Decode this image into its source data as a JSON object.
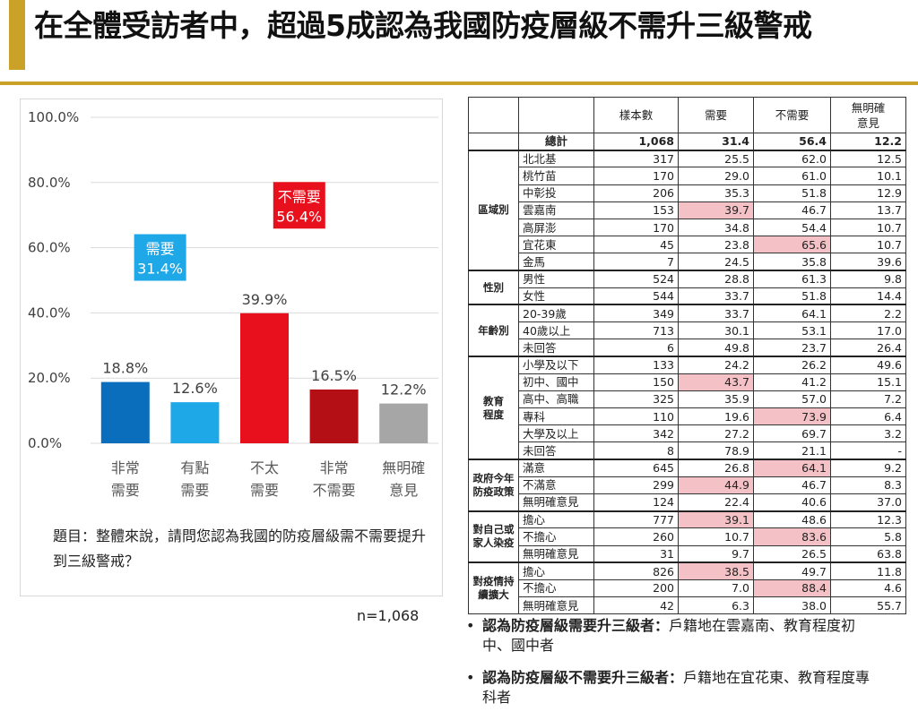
{
  "page": {
    "title": "在全體受訪者中，超過5成認為我國防疫層級不需升三級警戒",
    "question": "題目：整體來說，請問您認為我國的防疫層級需不需要提升到三級警戒？",
    "n_label": "n=1,068"
  },
  "colors": {
    "gold": "#C9A227",
    "highlight": "#F4C2C6",
    "need_callout": "#1EA8E8",
    "noneed_callout": "#E8101C"
  },
  "chart_data": {
    "type": "bar",
    "categories": [
      [
        "非常",
        "需要"
      ],
      [
        "有點",
        "需要"
      ],
      [
        "不太",
        "需要"
      ],
      [
        "非常",
        "不需要"
      ],
      [
        "無明確",
        "意見"
      ]
    ],
    "values": [
      18.8,
      12.6,
      39.9,
      16.5,
      12.2
    ],
    "value_labels": [
      "18.8%",
      "12.6%",
      "39.9%",
      "16.5%",
      "12.2%"
    ],
    "bar_colors": [
      "#0A6EBD",
      "#1EA8E8",
      "#E8101C",
      "#B40F14",
      "#A6A6A6"
    ],
    "yticks": [
      "100.0%",
      "80.0%",
      "60.0%",
      "40.0%",
      "20.0%",
      "0.0%"
    ],
    "ylim": [
      0,
      100
    ],
    "grid": true,
    "callouts": [
      {
        "label": "需要",
        "value": "31.4%",
        "color": "#1EA8E8",
        "over": [
          0,
          1
        ],
        "at": 57
      },
      {
        "label": "不需要",
        "value": "56.4%",
        "color": "#E8101C",
        "over": [
          2,
          3
        ],
        "at": 73
      }
    ]
  },
  "table": {
    "headers": [
      "",
      "",
      "樣本數",
      "需要",
      "不需要",
      "無明確\n意見"
    ],
    "total": {
      "label": "總計",
      "n": "1,068",
      "need": "31.4",
      "noneed": "56.4",
      "none": "12.2"
    },
    "groups": [
      {
        "label": "區域別",
        "rows": [
          {
            "sub": "北北基",
            "n": "317",
            "need": "25.5",
            "noneed": "62.0",
            "none": "12.5"
          },
          {
            "sub": "桃竹苗",
            "n": "170",
            "need": "29.0",
            "noneed": "61.0",
            "none": "10.1"
          },
          {
            "sub": "中彰投",
            "n": "206",
            "need": "35.3",
            "noneed": "51.8",
            "none": "12.9"
          },
          {
            "sub": "雲嘉南",
            "n": "153",
            "need": "39.7",
            "noneed": "46.7",
            "none": "13.7",
            "hl": "need"
          },
          {
            "sub": "高屏澎",
            "n": "170",
            "need": "34.8",
            "noneed": "54.4",
            "none": "10.7"
          },
          {
            "sub": "宜花東",
            "n": "45",
            "need": "23.8",
            "noneed": "65.6",
            "none": "10.7",
            "hl": "noneed"
          },
          {
            "sub": "金馬",
            "n": "7",
            "need": "24.5",
            "noneed": "35.8",
            "none": "39.6"
          }
        ]
      },
      {
        "label": "性別",
        "rows": [
          {
            "sub": "男性",
            "n": "524",
            "need": "28.8",
            "noneed": "61.3",
            "none": "9.8"
          },
          {
            "sub": "女性",
            "n": "544",
            "need": "33.7",
            "noneed": "51.8",
            "none": "14.4"
          }
        ]
      },
      {
        "label": "年齡別",
        "rows": [
          {
            "sub": "20-39歲",
            "n": "349",
            "need": "33.7",
            "noneed": "64.1",
            "none": "2.2"
          },
          {
            "sub": "40歲以上",
            "n": "713",
            "need": "30.1",
            "noneed": "53.1",
            "none": "17.0"
          },
          {
            "sub": "未回答",
            "n": "6",
            "need": "49.8",
            "noneed": "23.7",
            "none": "26.4"
          }
        ]
      },
      {
        "label": "教育\n程度",
        "rows": [
          {
            "sub": "小學及以下",
            "n": "133",
            "need": "24.2",
            "noneed": "26.2",
            "none": "49.6"
          },
          {
            "sub": "初中、國中",
            "n": "150",
            "need": "43.7",
            "noneed": "41.2",
            "none": "15.1",
            "hl": "need"
          },
          {
            "sub": "高中、高職",
            "n": "325",
            "need": "35.9",
            "noneed": "57.0",
            "none": "7.2"
          },
          {
            "sub": "專科",
            "n": "110",
            "need": "19.6",
            "noneed": "73.9",
            "none": "6.4",
            "hl": "noneed"
          },
          {
            "sub": "大學及以上",
            "n": "342",
            "need": "27.2",
            "noneed": "69.7",
            "none": "3.2"
          },
          {
            "sub": "未回答",
            "n": "8",
            "need": "78.9",
            "noneed": "21.1",
            "none": "-"
          }
        ]
      },
      {
        "label": "政府今年\n防疫政策",
        "rows": [
          {
            "sub": "滿意",
            "n": "645",
            "need": "26.8",
            "noneed": "64.1",
            "none": "9.2",
            "hl": "noneed"
          },
          {
            "sub": "不滿意",
            "n": "299",
            "need": "44.9",
            "noneed": "46.7",
            "none": "8.3",
            "hl": "need"
          },
          {
            "sub": "無明確意見",
            "n": "124",
            "need": "22.4",
            "noneed": "40.6",
            "none": "37.0"
          }
        ]
      },
      {
        "label": "對自己或\n家人染疫",
        "rows": [
          {
            "sub": "擔心",
            "n": "777",
            "need": "39.1",
            "noneed": "48.6",
            "none": "12.3",
            "hl": "need"
          },
          {
            "sub": "不擔心",
            "n": "260",
            "need": "10.7",
            "noneed": "83.6",
            "none": "5.8",
            "hl": "noneed"
          },
          {
            "sub": "無明確意見",
            "n": "31",
            "need": "9.7",
            "noneed": "26.5",
            "none": "63.8"
          }
        ]
      },
      {
        "label": "對疫情持\n續擴大",
        "rows": [
          {
            "sub": "擔心",
            "n": "826",
            "need": "38.5",
            "noneed": "49.7",
            "none": "11.8",
            "hl": "need"
          },
          {
            "sub": "不擔心",
            "n": "200",
            "need": "7.0",
            "noneed": "88.4",
            "none": "4.6",
            "hl": "noneed"
          },
          {
            "sub": "無明確意見",
            "n": "42",
            "need": "6.3",
            "noneed": "38.0",
            "none": "55.7"
          }
        ]
      }
    ]
  },
  "notes": [
    {
      "lead": "認為防疫層級需要升三級者：",
      "text": "戶籍地在雲嘉南、教育程度初中、國中者"
    },
    {
      "lead": "認為防疫層級不需要升三級者：",
      "text": "戶籍地在宜花東、教育程度專科者"
    }
  ]
}
